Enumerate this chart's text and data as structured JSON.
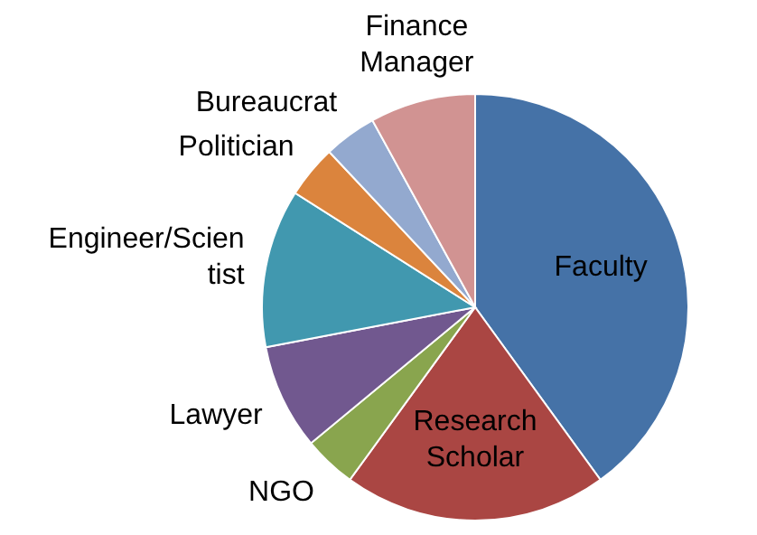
{
  "chart_data": {
    "type": "pie",
    "categories": [
      "Faculty",
      "Research Scholar",
      "NGO",
      "Lawyer",
      "Engineer/Scientist",
      "Politician",
      "Bureaucrat",
      "Finance Manager"
    ],
    "values": [
      40,
      20,
      4,
      8,
      12,
      4,
      4,
      8
    ],
    "colors": [
      "#4572a7",
      "#aa4643",
      "#89a54e",
      "#71588f",
      "#4198af",
      "#db843d",
      "#93a9cf",
      "#d19392"
    ]
  }
}
